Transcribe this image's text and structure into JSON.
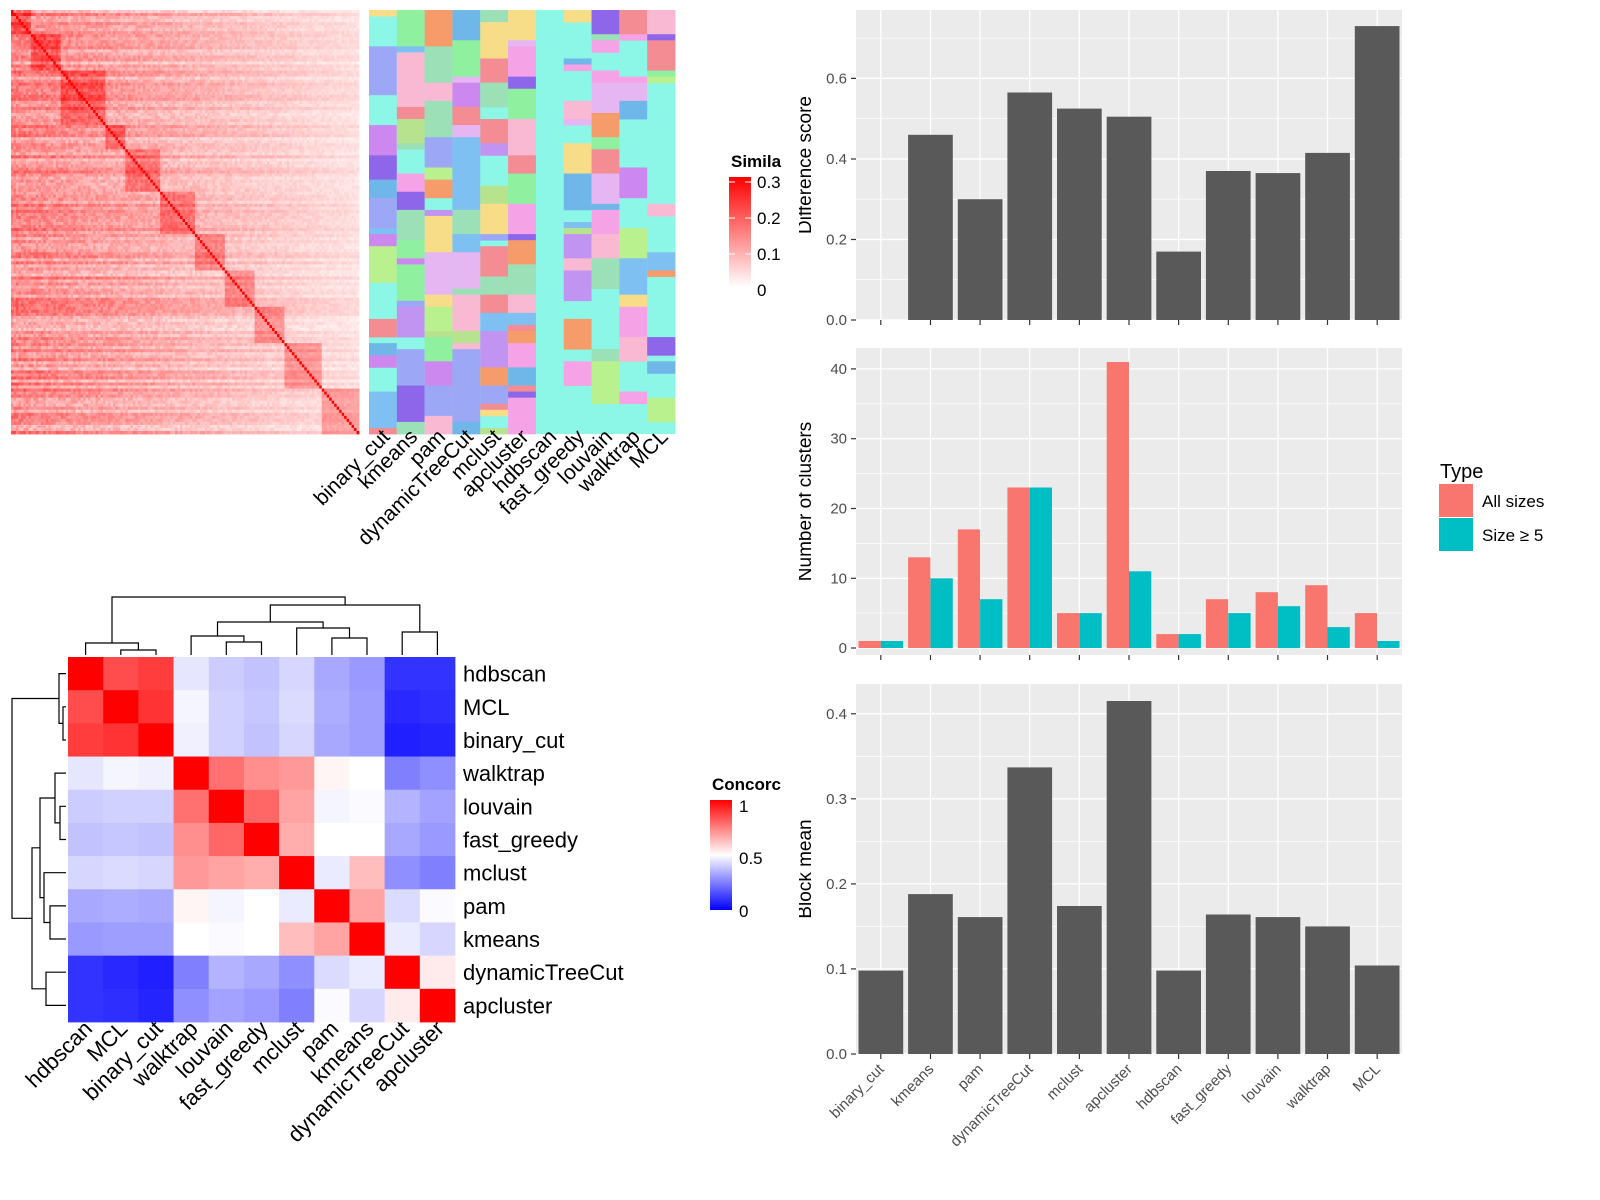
{
  "similarity_legend": {
    "title": "Simila",
    "ticks": [
      "0.3",
      "0.2",
      "0.1",
      "0"
    ],
    "range": [
      0,
      0.3
    ]
  },
  "concordance_legend": {
    "title": "Concorc",
    "ticks": [
      "1",
      "0.5",
      "0"
    ],
    "range": [
      0,
      1
    ]
  },
  "cluster_methods": [
    "binary_cut",
    "kmeans",
    "pam",
    "dynamicTreeCut",
    "mclust",
    "apcluster",
    "hdbscan",
    "fast_greedy",
    "louvain",
    "walktrap",
    "MCL"
  ],
  "heatmap_order": [
    "hdbscan",
    "MCL",
    "binary_cut",
    "walktrap",
    "louvain",
    "fast_greedy",
    "mclust",
    "pam",
    "kmeans",
    "dynamicTreeCut",
    "apcluster"
  ],
  "type_legend": {
    "title": "Type",
    "items": [
      {
        "label": "All sizes",
        "color": "#F8766D"
      },
      {
        "label": "Size ≥ 5",
        "color": "#00BFC4"
      }
    ]
  },
  "colors": {
    "bar": "#595959",
    "panel_bg": "#EBEBEB",
    "grid": "#FFFFFF",
    "all_sizes": "#F8766D",
    "size5": "#00BFC4"
  },
  "chart_data": [
    {
      "type": "heatmap",
      "title": "",
      "legend_title": "Simila",
      "scale": {
        "min": 0,
        "max": 0.3,
        "colors": [
          "#FFFFFF",
          "#FF0000"
        ]
      },
      "n_terms": 140,
      "note": "term-by-term semantic similarity matrix with diagonal blocks"
    },
    {
      "type": "heatmap",
      "title": "",
      "columns": [
        "binary_cut",
        "kmeans",
        "pam",
        "dynamicTreeCut",
        "mclust",
        "apcluster",
        "hdbscan",
        "fast_greedy",
        "louvain",
        "walktrap",
        "MCL"
      ],
      "note": "cluster membership annotation per method; categorical colors"
    },
    {
      "type": "heatmap",
      "title": "",
      "legend_title": "Concorc",
      "rows": [
        "hdbscan",
        "MCL",
        "binary_cut",
        "walktrap",
        "louvain",
        "fast_greedy",
        "mclust",
        "pam",
        "kmeans",
        "dynamicTreeCut",
        "apcluster"
      ],
      "columns": [
        "hdbscan",
        "MCL",
        "binary_cut",
        "walktrap",
        "louvain",
        "fast_greedy",
        "mclust",
        "pam",
        "kmeans",
        "dynamicTreeCut",
        "apcluster"
      ],
      "scale": {
        "min": 0,
        "mid": 0.5,
        "max": 1,
        "colors": [
          "#0000FF",
          "#FFFFFF",
          "#FF0000"
        ]
      },
      "values": [
        [
          1.0,
          0.85,
          0.88,
          0.45,
          0.4,
          0.38,
          0.42,
          0.33,
          0.3,
          0.1,
          0.1
        ],
        [
          0.85,
          1.0,
          0.9,
          0.48,
          0.41,
          0.39,
          0.43,
          0.34,
          0.31,
          0.08,
          0.09
        ],
        [
          0.88,
          0.9,
          1.0,
          0.47,
          0.41,
          0.38,
          0.42,
          0.33,
          0.31,
          0.06,
          0.07
        ],
        [
          0.45,
          0.48,
          0.47,
          1.0,
          0.78,
          0.72,
          0.7,
          0.52,
          0.5,
          0.25,
          0.28
        ],
        [
          0.4,
          0.41,
          0.41,
          0.78,
          1.0,
          0.8,
          0.68,
          0.48,
          0.49,
          0.35,
          0.32
        ],
        [
          0.38,
          0.39,
          0.38,
          0.72,
          0.8,
          1.0,
          0.66,
          0.5,
          0.5,
          0.33,
          0.3
        ],
        [
          0.42,
          0.43,
          0.42,
          0.7,
          0.68,
          0.66,
          1.0,
          0.46,
          0.63,
          0.28,
          0.25
        ],
        [
          0.33,
          0.34,
          0.33,
          0.52,
          0.48,
          0.5,
          0.46,
          1.0,
          0.68,
          0.43,
          0.49
        ],
        [
          0.3,
          0.31,
          0.31,
          0.5,
          0.49,
          0.5,
          0.63,
          0.68,
          1.0,
          0.46,
          0.42
        ],
        [
          0.1,
          0.08,
          0.06,
          0.25,
          0.35,
          0.33,
          0.28,
          0.43,
          0.46,
          1.0,
          0.54
        ],
        [
          0.1,
          0.09,
          0.07,
          0.28,
          0.32,
          0.3,
          0.25,
          0.49,
          0.42,
          0.54,
          1.0
        ]
      ]
    },
    {
      "type": "bar",
      "title": "",
      "xlabel": "",
      "ylabel": "Difference score",
      "categories": [
        "binary_cut",
        "kmeans",
        "pam",
        "dynamicTreeCut",
        "mclust",
        "apcluster",
        "hdbscan",
        "fast_greedy",
        "louvain",
        "walktrap",
        "MCL"
      ],
      "values": [
        0.0,
        0.46,
        0.3,
        0.565,
        0.525,
        0.505,
        0.17,
        0.37,
        0.365,
        0.415,
        0.73
      ],
      "ylim": [
        0,
        0.77
      ],
      "yticks": [
        0.0,
        0.2,
        0.4,
        0.6
      ],
      "grid": true
    },
    {
      "type": "bar",
      "title": "",
      "xlabel": "",
      "ylabel": "Number of clusters",
      "categories": [
        "binary_cut",
        "kmeans",
        "pam",
        "dynamicTreeCut",
        "mclust",
        "apcluster",
        "hdbscan",
        "fast_greedy",
        "louvain",
        "walktrap",
        "MCL"
      ],
      "series": [
        {
          "name": "All sizes",
          "values": [
            1,
            13,
            17,
            23,
            5,
            41,
            2,
            7,
            8,
            9,
            5
          ]
        },
        {
          "name": "Size ≥ 5",
          "values": [
            1,
            10,
            7,
            23,
            5,
            11,
            2,
            5,
            6,
            3,
            1
          ]
        }
      ],
      "ylim": [
        -1,
        43
      ],
      "yticks": [
        0,
        10,
        20,
        30,
        40
      ],
      "legend": "right",
      "grid": true
    },
    {
      "type": "bar",
      "title": "",
      "xlabel": "",
      "ylabel": "Block mean",
      "categories": [
        "binary_cut",
        "kmeans",
        "pam",
        "dynamicTreeCut",
        "mclust",
        "apcluster",
        "hdbscan",
        "fast_greedy",
        "louvain",
        "walktrap",
        "MCL"
      ],
      "values": [
        0.098,
        0.188,
        0.161,
        0.337,
        0.174,
        0.415,
        0.098,
        0.164,
        0.161,
        0.15,
        0.104
      ],
      "ylim": [
        0,
        0.435
      ],
      "yticks": [
        0.0,
        0.1,
        0.2,
        0.3,
        0.4
      ],
      "grid": true
    }
  ]
}
